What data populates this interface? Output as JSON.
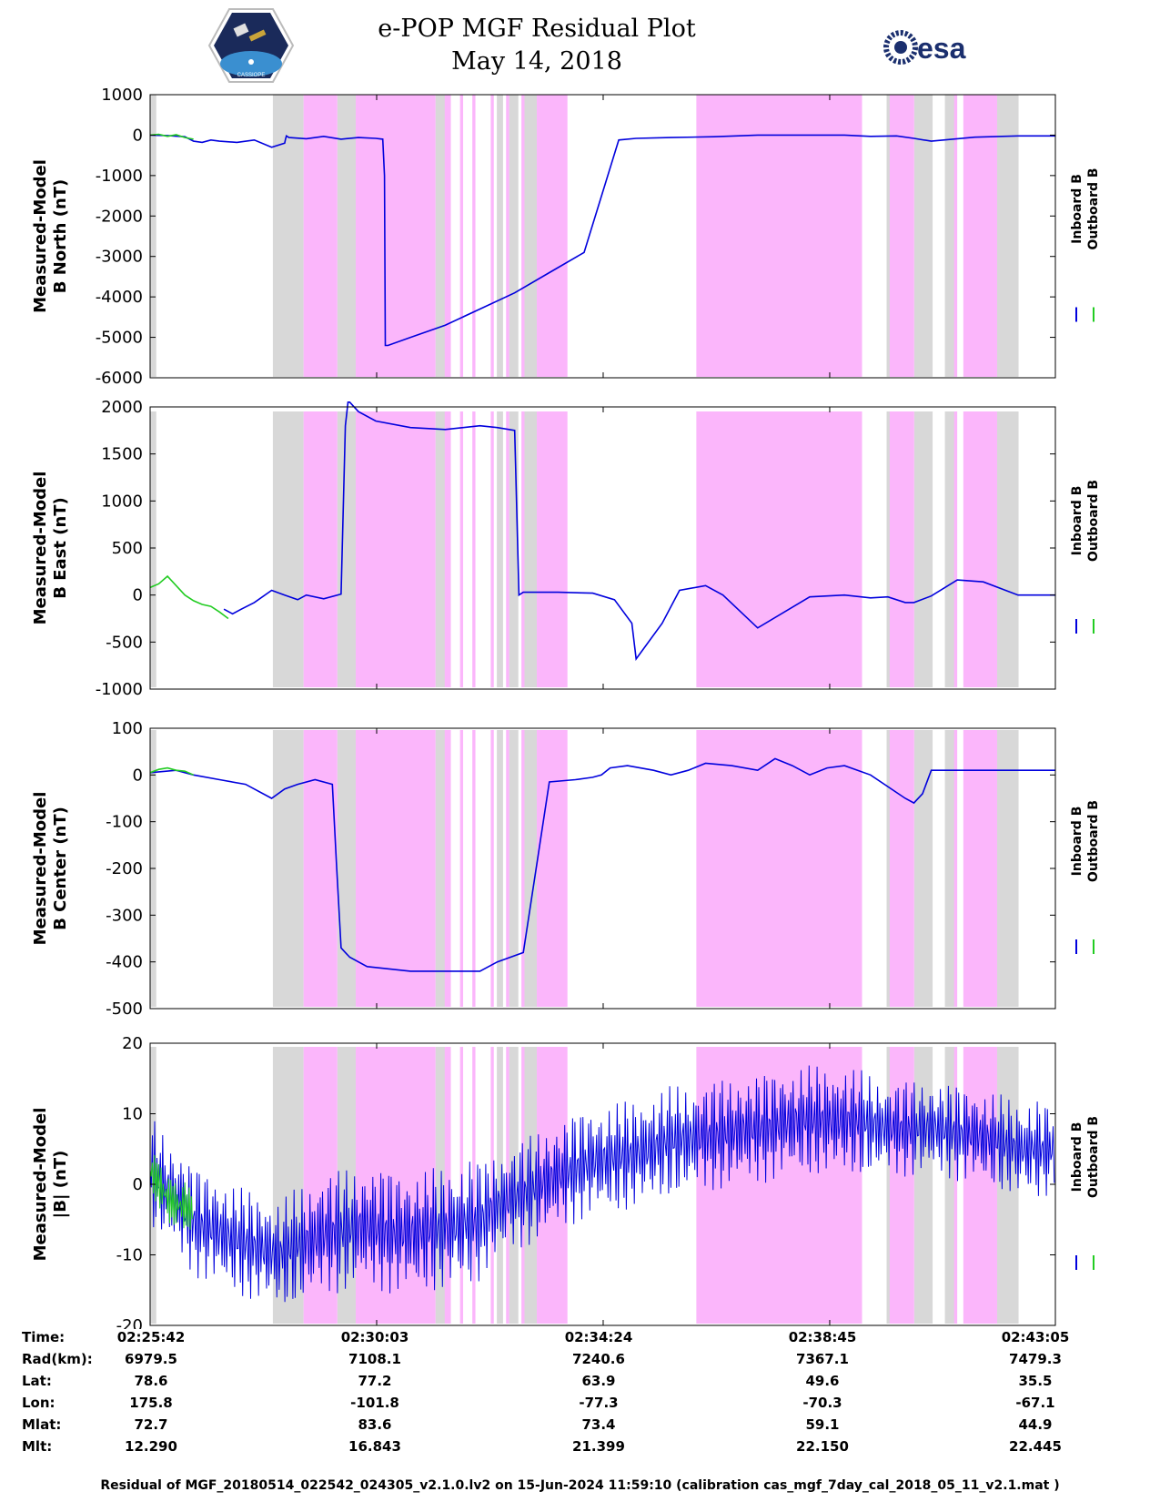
{
  "header": {
    "title_line1": "e-POP MGF Residual Plot",
    "title_line2": "May 14, 2018",
    "logo_left_text": "CASSIOPE",
    "logo_right_text": "esa"
  },
  "colors": {
    "inboard": "#0000dd",
    "outboard": "#22cc22",
    "shade_gray": "#d8d8d8",
    "shade_pink": "#fbb6fb"
  },
  "shading": {
    "gray": [
      [
        0,
        2
      ],
      [
        40,
        50
      ],
      [
        61,
        67
      ],
      [
        93,
        97
      ],
      [
        113,
        115
      ],
      [
        117,
        120
      ],
      [
        122,
        130
      ],
      [
        240,
        246
      ],
      [
        249,
        255
      ],
      [
        259,
        263
      ],
      [
        273,
        283
      ]
    ],
    "pink": [
      [
        50,
        61
      ],
      [
        67,
        93
      ],
      [
        96,
        98
      ],
      [
        101,
        102
      ],
      [
        105,
        106
      ],
      [
        111,
        112
      ],
      [
        116,
        117
      ],
      [
        121,
        122
      ],
      [
        126,
        136
      ],
      [
        178,
        232
      ],
      [
        241,
        249
      ],
      [
        262,
        263
      ],
      [
        265,
        276
      ]
    ]
  },
  "legend": {
    "inboard_label": "Inboard B",
    "outboard_label": "Outboard B"
  },
  "chart_data": [
    {
      "type": "line",
      "title": "",
      "xlabel": "Time",
      "ylabel": "Measured-Model B North (nT)",
      "ylabel_line1": "Measured-Model",
      "ylabel_line2": "B North (nT)",
      "xlim": [
        0,
        1043
      ],
      "ylim": [
        -6000,
        1000
      ],
      "yticks": [
        1000,
        0,
        -1000,
        -2000,
        -3000,
        -4000,
        -5000,
        -6000
      ],
      "series": [
        {
          "name": "Inboard B",
          "x": [
            0,
            20,
            40,
            50,
            60,
            70,
            80,
            100,
            120,
            140,
            155,
            156,
            157,
            160,
            180,
            200,
            220,
            240,
            260,
            268,
            270,
            271,
            274,
            300,
            340,
            380,
            420,
            460,
            500,
            540,
            560,
            600,
            650,
            700,
            800,
            830,
            860,
            880,
            900,
            950,
            1000,
            1043
          ],
          "y": [
            0,
            -10,
            -40,
            -150,
            -180,
            -120,
            -150,
            -180,
            -120,
            -300,
            -200,
            -100,
            -20,
            -60,
            -90,
            -30,
            -100,
            -60,
            -80,
            -100,
            -1000,
            -5200,
            -5200,
            -5000,
            -4700,
            -4300,
            -3900,
            -3400,
            -2900,
            -120,
            -80,
            -60,
            -40,
            0,
            0,
            -30,
            -20,
            -80,
            -150,
            -50,
            -20,
            -20
          ]
        },
        {
          "name": "Outboard B",
          "x": [
            0,
            10,
            20,
            30,
            40,
            50
          ],
          "y": [
            0,
            20,
            -30,
            10,
            -60,
            -100
          ]
        }
      ]
    },
    {
      "type": "line",
      "title": "",
      "xlabel": "Time",
      "ylabel": "Measured-Model B East (nT)",
      "ylabel_line1": "Measured-Model",
      "ylabel_line2": "B East (nT)",
      "xlim": [
        0,
        1043
      ],
      "ylim": [
        -1000,
        2000
      ],
      "yticks": [
        2000,
        1500,
        1000,
        500,
        0,
        -500,
        -1000
      ],
      "series": [
        {
          "name": "Inboard B",
          "x": [
            85,
            95,
            105,
            120,
            140,
            155,
            170,
            180,
            200,
            220,
            225,
            228,
            230,
            240,
            260,
            300,
            340,
            380,
            400,
            420,
            425,
            430,
            470,
            510,
            535,
            555,
            560,
            590,
            610,
            640,
            660,
            700,
            760,
            800,
            830,
            850,
            870,
            880,
            900,
            930,
            960,
            1000,
            1043
          ],
          "y": [
            -150,
            -200,
            -150,
            -80,
            50,
            0,
            -50,
            0,
            -40,
            10,
            1800,
            2050,
            2050,
            1950,
            1850,
            1780,
            1760,
            1800,
            1780,
            1750,
            0,
            30,
            30,
            20,
            -50,
            -300,
            -680,
            -300,
            50,
            100,
            0,
            -350,
            -20,
            0,
            -30,
            -20,
            -80,
            -80,
            -10,
            160,
            140,
            0,
            0
          ]
        },
        {
          "name": "Outboard B",
          "x": [
            0,
            10,
            20,
            30,
            40,
            50,
            60,
            70,
            80,
            90
          ],
          "y": [
            80,
            120,
            200,
            100,
            0,
            -60,
            -100,
            -120,
            -180,
            -250
          ]
        }
      ]
    },
    {
      "type": "line",
      "title": "",
      "xlabel": "Time",
      "ylabel": "Measured-Model B Center (nT)",
      "ylabel_line1": "Measured-Model",
      "ylabel_line2": "B Center (nT)",
      "xlim": [
        0,
        1043
      ],
      "ylim": [
        -500,
        100
      ],
      "yticks": [
        100,
        0,
        -100,
        -200,
        -300,
        -400,
        -500
      ],
      "series": [
        {
          "name": "Inboard B",
          "x": [
            0,
            30,
            50,
            80,
            110,
            140,
            155,
            170,
            190,
            210,
            215,
            220,
            225,
            230,
            250,
            300,
            340,
            380,
            400,
            430,
            460,
            490,
            510,
            520,
            530,
            550,
            580,
            600,
            620,
            640,
            670,
            700,
            720,
            740,
            760,
            780,
            800,
            830,
            870,
            880,
            890,
            900,
            950,
            1000,
            1043
          ],
          "y": [
            5,
            10,
            0,
            -10,
            -20,
            -50,
            -30,
            -20,
            -10,
            -20,
            -200,
            -370,
            -380,
            -390,
            -410,
            -420,
            -420,
            -420,
            -400,
            -380,
            -15,
            -10,
            -5,
            0,
            15,
            20,
            10,
            0,
            10,
            25,
            20,
            10,
            35,
            20,
            0,
            15,
            20,
            0,
            -50,
            -60,
            -40,
            10,
            10,
            10,
            10
          ]
        },
        {
          "name": "Outboard B",
          "x": [
            0,
            10,
            20,
            30,
            40,
            50
          ],
          "y": [
            5,
            12,
            15,
            10,
            8,
            0
          ]
        }
      ]
    },
    {
      "type": "line",
      "title": "",
      "xlabel": "Time",
      "ylabel": "Measured-Model |B| (nT)",
      "ylabel_line1": "Measured-Model",
      "ylabel_line2": "|B| (nT)",
      "xlim": [
        0,
        1043
      ],
      "ylim": [
        -20,
        20
      ],
      "yticks": [
        20,
        10,
        0,
        -10,
        -20
      ],
      "series": [
        {
          "name": "Inboard B",
          "x": [
            0,
            50,
            100,
            150,
            200,
            250,
            300,
            350,
            380,
            400,
            450,
            500,
            550,
            600,
            650,
            700,
            750,
            800,
            850,
            900,
            950,
            1000,
            1043
          ],
          "y": [
            2,
            -5,
            -8,
            -10,
            -7,
            -6,
            -7,
            -6,
            -5,
            -3,
            0,
            3,
            4,
            6,
            7,
            8,
            9,
            9,
            8,
            8,
            7,
            5,
            5
          ],
          "spread": [
            8,
            8,
            8,
            8,
            9,
            9,
            9,
            9,
            9,
            8,
            8,
            8,
            8,
            8,
            8,
            8,
            8,
            8,
            7,
            7,
            7,
            7,
            7
          ]
        },
        {
          "name": "Outboard B",
          "x": [
            0,
            10,
            20,
            30,
            40,
            50
          ],
          "y": [
            2,
            0,
            -2,
            -3,
            -3,
            -4
          ],
          "spread": [
            4,
            4,
            4,
            4,
            4,
            4
          ]
        }
      ]
    }
  ],
  "xaxis": {
    "time_ticks_x": [
      0,
      261,
      522,
      783,
      1043
    ]
  },
  "info": {
    "labels": [
      "Time:",
      "Rad(km):",
      "Lat:",
      "Lon:",
      "Mlat:",
      "Mlt:"
    ],
    "columns": [
      {
        "time": "02:25:42",
        "rad": "6979.5",
        "lat": "78.6",
        "lon": "175.8",
        "mlat": "72.7",
        "mlt": "12.290"
      },
      {
        "time": "02:30:03",
        "rad": "7108.1",
        "lat": "77.2",
        "lon": "-101.8",
        "mlat": "83.6",
        "mlt": "16.843"
      },
      {
        "time": "02:34:24",
        "rad": "7240.6",
        "lat": "63.9",
        "lon": "-77.3",
        "mlat": "73.4",
        "mlt": "21.399"
      },
      {
        "time": "02:38:45",
        "rad": "7367.1",
        "lat": "49.6",
        "lon": "-70.3",
        "mlat": "59.1",
        "mlt": "22.150"
      },
      {
        "time": "02:43:05",
        "rad": "7479.3",
        "lat": "35.5",
        "lon": "-67.1",
        "mlat": "44.9",
        "mlt": "22.445"
      }
    ]
  },
  "footer": {
    "text": "Residual of MGF_20180514_022542_024305_v2.1.0.lv2 on 15-Jun-2024 11:59:10 (calibration cas_mgf_7day_cal_2018_05_11_v2.1.mat )"
  }
}
